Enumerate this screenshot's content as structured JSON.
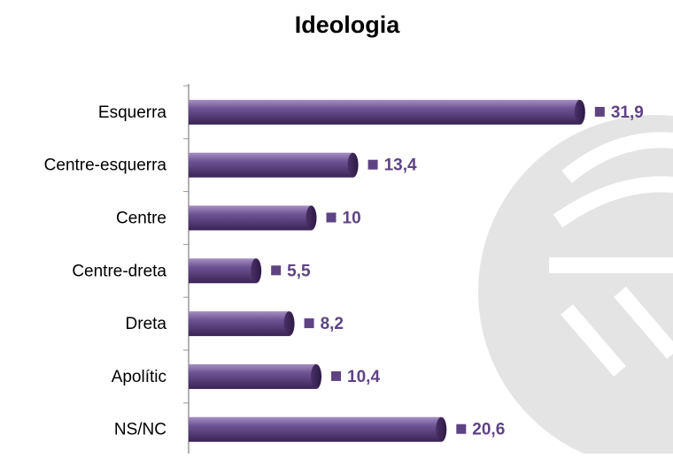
{
  "chart_data": {
    "type": "bar",
    "orientation": "horizontal",
    "title": "Ideologia",
    "categories": [
      "Esquerra",
      "Centre-esquerra",
      "Centre",
      "Centre-dreta",
      "Dreta",
      "Apolític",
      "NS/NC"
    ],
    "values": [
      31.9,
      13.4,
      10,
      5.5,
      8.2,
      10.4,
      20.6
    ],
    "value_labels": [
      "31,9",
      "13,4",
      "10",
      "5,5",
      "8,2",
      "10,4",
      "20,6"
    ],
    "color": "#5e4383"
  }
}
